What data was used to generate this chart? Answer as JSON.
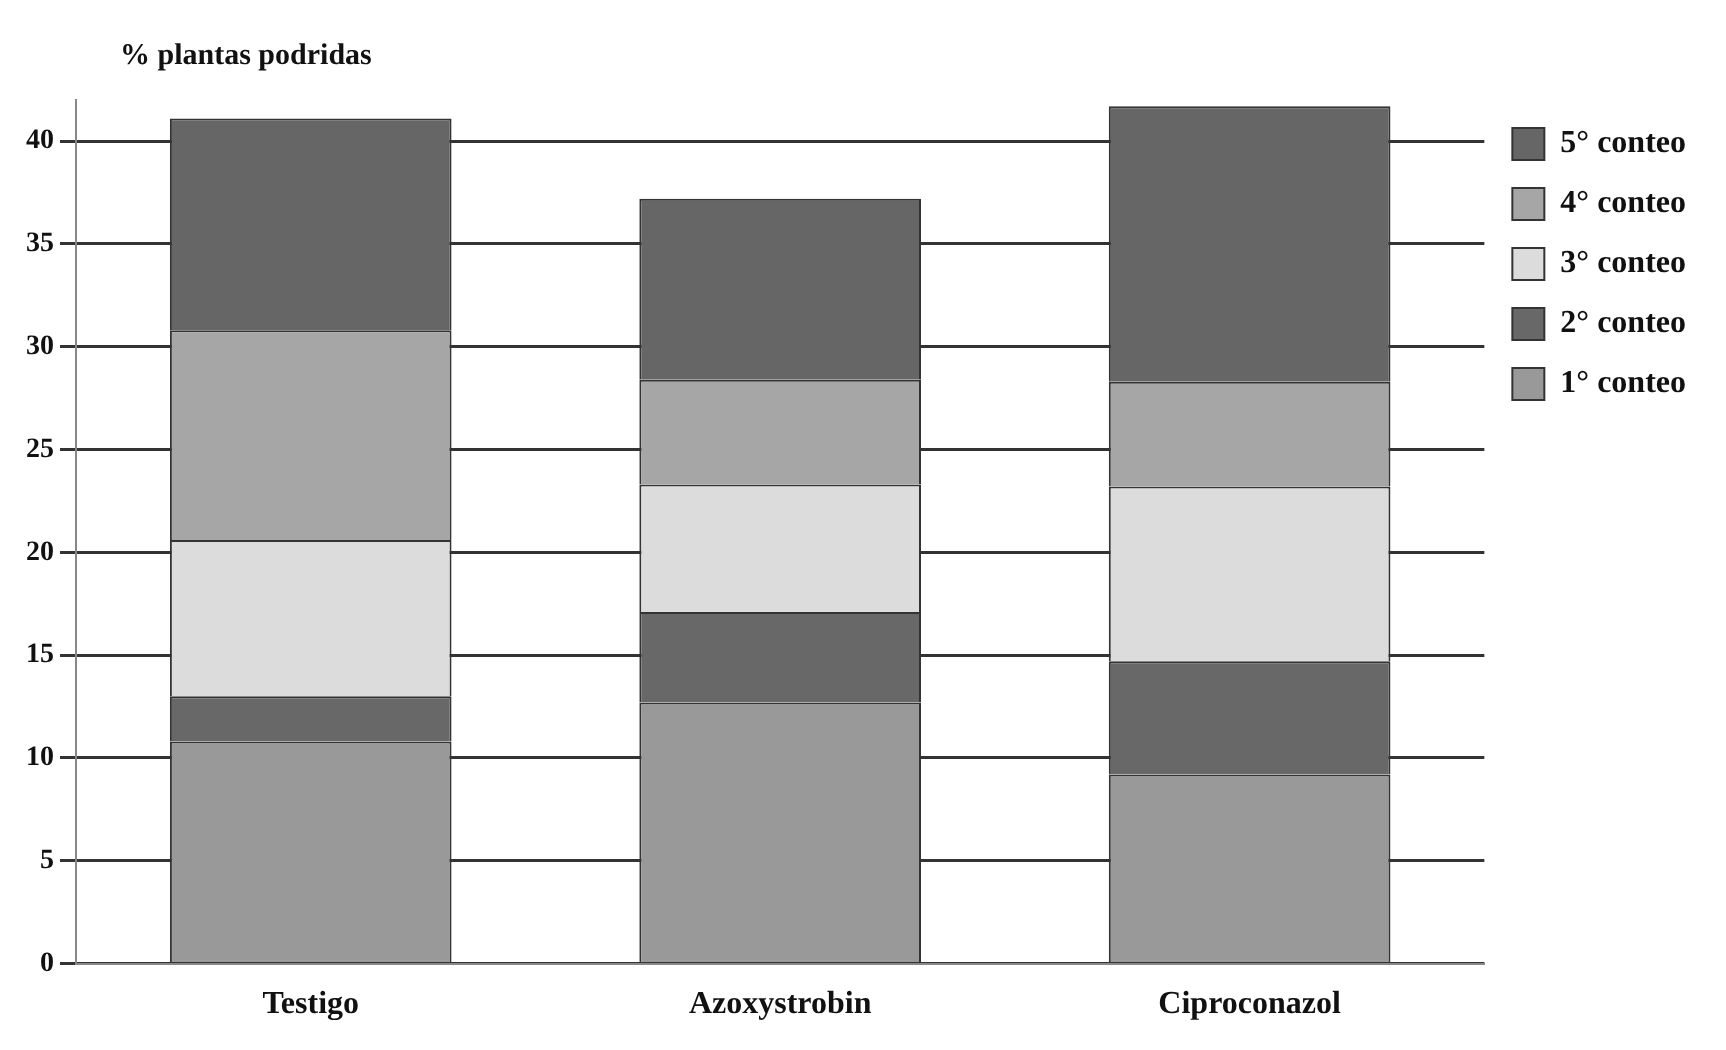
{
  "chart_data": {
    "type": "bar",
    "stacked": true,
    "ylabel": "% plantas podridas",
    "categories": [
      "Testigo",
      "Azoxystrobin",
      "Ciproconazol"
    ],
    "series": [
      {
        "name": "1° conteo",
        "color": "#999999",
        "values": [
          10.8,
          12.7,
          9.2
        ]
      },
      {
        "name": "2° conteo",
        "color": "#686868",
        "values": [
          2.2,
          4.4,
          5.5
        ]
      },
      {
        "name": "3° conteo",
        "color": "#dcdcdc",
        "values": [
          7.6,
          6.2,
          8.5
        ]
      },
      {
        "name": "4° conteo",
        "color": "#a6a6a6",
        "values": [
          10.2,
          5.1,
          5.1
        ]
      },
      {
        "name": "5° conteo",
        "color": "#666666",
        "values": [
          10.3,
          8.8,
          13.4
        ]
      }
    ],
    "ylim": [
      0,
      42
    ],
    "yticks": [
      0,
      5,
      10,
      15,
      20,
      25,
      30,
      35,
      40
    ],
    "grid": "y",
    "legend": "top right"
  }
}
